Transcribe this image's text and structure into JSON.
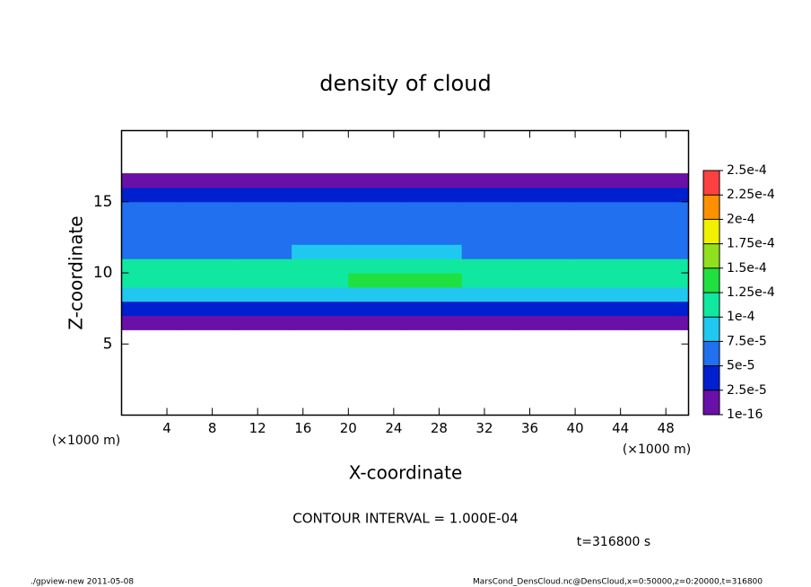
{
  "chart_data": {
    "type": "heatmap",
    "title": "density of cloud",
    "x_label": "X-coordinate",
    "y_label": "Z-coordinate",
    "x_unit": "(×1000 m)",
    "y_unit": "(×1000 m)",
    "xlim": [
      0,
      50
    ],
    "ylim": [
      0,
      20
    ],
    "xticks": [
      4,
      8,
      12,
      16,
      20,
      24,
      28,
      32,
      36,
      40,
      44,
      48
    ],
    "yticks": [
      5,
      10,
      15
    ],
    "x_bins": [
      0,
      5,
      10,
      15,
      20,
      25,
      30,
      35,
      40,
      45,
      50
    ],
    "z_bins": [
      6,
      7,
      8,
      9,
      10,
      11,
      12,
      13,
      14,
      15,
      16,
      17
    ],
    "values": [
      [
        1.5e-05,
        1.5e-05,
        1.5e-05,
        1.5e-05,
        1.5e-05,
        1.5e-05,
        1.5e-05,
        1.5e-05,
        1.5e-05,
        1.5e-05
      ],
      [
        4e-05,
        4e-05,
        3.5e-05,
        4e-05,
        4.5e-05,
        4e-05,
        4e-05,
        3.5e-05,
        4e-05,
        4e-05
      ],
      [
        8e-05,
        9e-05,
        8e-05,
        7.5e-05,
        8e-05,
        8.5e-05,
        8e-05,
        8e-05,
        8.5e-05,
        8e-05
      ],
      [
        0.00012,
        0.00012,
        0.000115,
        0.00012,
        0.00013,
        0.00013,
        0.00012,
        0.000115,
        0.00012,
        0.00012
      ],
      [
        0.00011,
        0.00011,
        0.000105,
        0.00011,
        0.00012,
        0.000115,
        0.00011,
        0.000105,
        0.0001,
        0.000105
      ],
      [
        7e-05,
        7e-05,
        7e-05,
        7.5e-05,
        8e-05,
        7.5e-05,
        7e-05,
        7e-05,
        7e-05,
        7e-05
      ],
      [
        6e-05,
        6e-05,
        6e-05,
        6e-05,
        6.5e-05,
        6e-05,
        6e-05,
        6e-05,
        6e-05,
        6e-05
      ],
      [
        6e-05,
        6e-05,
        6e-05,
        6e-05,
        6e-05,
        6e-05,
        5.8e-05,
        5.8e-05,
        6e-05,
        6e-05
      ],
      [
        5.5e-05,
        5.5e-05,
        5.5e-05,
        5.5e-05,
        5.8e-05,
        5.5e-05,
        5.5e-05,
        5.5e-05,
        5.5e-05,
        5.5e-05
      ],
      [
        4e-05,
        4e-05,
        4e-05,
        4e-05,
        4e-05,
        4e-05,
        4e-05,
        4e-05,
        4e-05,
        4e-05
      ],
      [
        1.5e-05,
        1.5e-05,
        1.5e-05,
        1.5e-05,
        1.5e-05,
        1.5e-05,
        1.5e-05,
        1.5e-05,
        1.5e-05,
        1.5e-05
      ]
    ],
    "levels": [
      {
        "value": 1e-16,
        "label": "1e-16"
      },
      {
        "value": 2.5e-05,
        "label": "2.5e-5"
      },
      {
        "value": 5e-05,
        "label": "5e-5"
      },
      {
        "value": 7.5e-05,
        "label": "7.5e-5"
      },
      {
        "value": 0.0001,
        "label": "1e-4"
      },
      {
        "value": 0.000125,
        "label": "1.25e-4"
      },
      {
        "value": 0.00015,
        "label": "1.5e-4"
      },
      {
        "value": 0.000175,
        "label": "1.75e-4"
      },
      {
        "value": 0.0002,
        "label": "2e-4"
      },
      {
        "value": 0.000225,
        "label": "2.25e-4"
      },
      {
        "value": 0.00025,
        "label": "2.5e-4"
      }
    ],
    "colors": [
      "#6a10a8",
      "#0020d0",
      "#2070f0",
      "#20c8f0",
      "#10e8a0",
      "#20e040",
      "#90e020",
      "#f0f000",
      "#ff9000",
      "#ff4040"
    ],
    "contour_note": "CONTOUR INTERVAL = 1.000E-04",
    "time_note": "t=316800 s",
    "footer_left": "./gpview-new   2011-05-08",
    "footer_right": "MarsCond_DensCloud.nc@DensCloud,x=0:50000,z=0:20000,t=316800"
  }
}
